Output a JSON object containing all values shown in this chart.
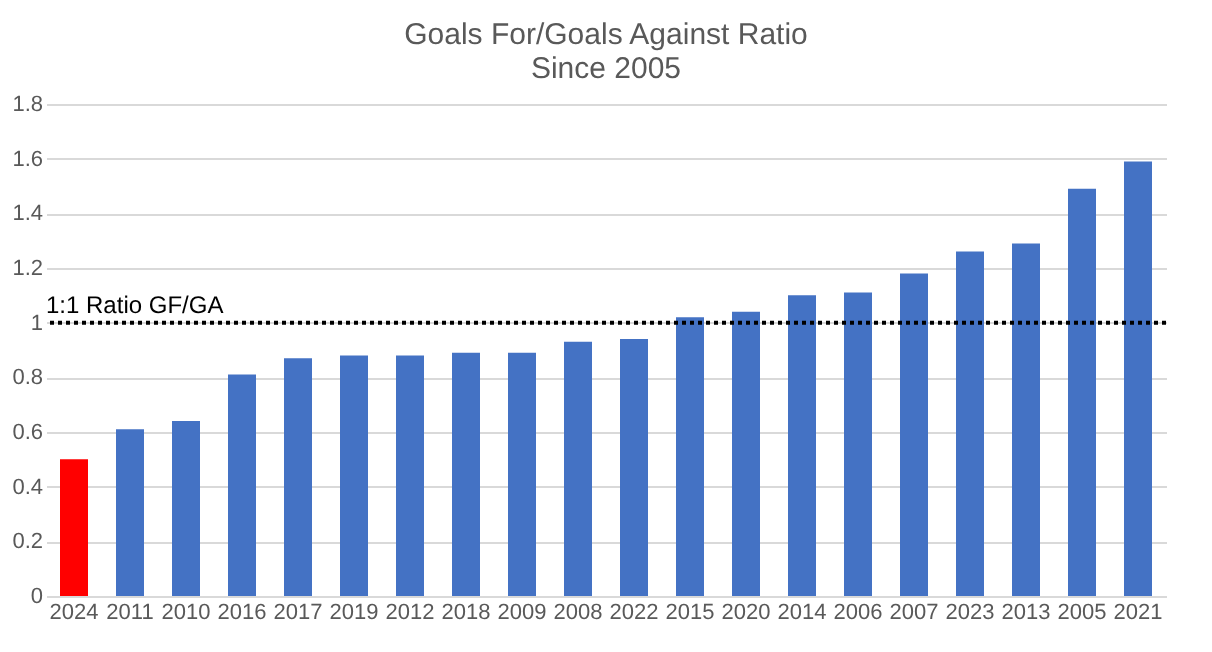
{
  "chart_data": {
    "type": "bar",
    "title": [
      "Goals For/Goals Against Ratio",
      "Since 2005"
    ],
    "categories": [
      "2024",
      "2011",
      "2010",
      "2016",
      "2017",
      "2019",
      "2012",
      "2018",
      "2009",
      "2008",
      "2022",
      "2015",
      "2020",
      "2014",
      "2006",
      "2007",
      "2023",
      "2013",
      "2005",
      "2021"
    ],
    "values": [
      0.5,
      0.61,
      0.64,
      0.81,
      0.87,
      0.88,
      0.88,
      0.89,
      0.89,
      0.93,
      0.94,
      1.02,
      1.04,
      1.1,
      1.11,
      1.18,
      1.26,
      1.29,
      1.49,
      1.59
    ],
    "colors": [
      "#ff0000",
      "#4472c4",
      "#4472c4",
      "#4472c4",
      "#4472c4",
      "#4472c4",
      "#4472c4",
      "#4472c4",
      "#4472c4",
      "#4472c4",
      "#4472c4",
      "#4472c4",
      "#4472c4",
      "#4472c4",
      "#4472c4",
      "#4472c4",
      "#4472c4",
      "#4472c4",
      "#4472c4",
      "#4472c4"
    ],
    "ylim": [
      0,
      1.8
    ],
    "yticks": [
      0,
      0.2,
      0.4,
      0.6,
      0.8,
      1,
      1.2,
      1.4,
      1.6,
      1.8
    ],
    "grid": "y",
    "ref_lines": [
      {
        "axis": "y",
        "value": 1,
        "label": "1:1 Ratio GF/GA",
        "color": "#000000",
        "line_style": "dotted"
      }
    ]
  }
}
